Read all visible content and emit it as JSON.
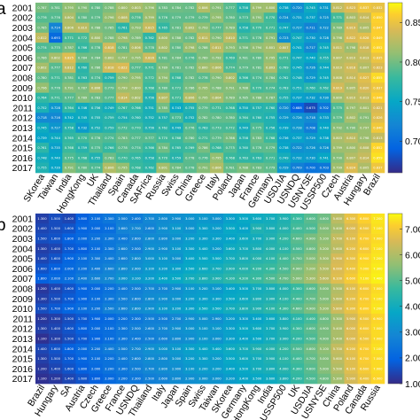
{
  "chart_data": [
    {
      "type": "heatmap",
      "panel_label": "a",
      "years": [
        "2001",
        "2002",
        "2003",
        "2004",
        "2005",
        "2006",
        "2007",
        "2008",
        "2009",
        "2010",
        "2011",
        "2012",
        "2013",
        "2014",
        "2015",
        "2016",
        "2017"
      ],
      "markets": [
        "SKorea",
        "Taiwan",
        "India",
        "HongKong",
        "UK",
        "Thailand",
        "Spain",
        "Canada",
        "SAFrica",
        "Russia",
        "Swiss",
        "China",
        "Greece",
        "Italy",
        "Poland",
        "Japan",
        "France",
        "Germany",
        "USDJIA",
        "USNDQ",
        "USNYSE",
        "USSP500",
        "Czech",
        "Austria",
        "Hungary",
        "Brazil"
      ],
      "colorbar": {
        "ticks": [
          0.7,
          0.75,
          0.8,
          0.85
        ],
        "tick_labels": [
          "0.700",
          "0.750",
          "0.800",
          "0.850"
        ],
        "range": [
          0.66,
          0.875
        ]
      },
      "values": [
        [
          0.787,
          0.781,
          0.795,
          0.79,
          0.78,
          0.788,
          0.8,
          0.803,
          0.796,
          0.783,
          0.784,
          0.782,
          0.806,
          0.791,
          0.777,
          0.758,
          0.799,
          0.8,
          0.738,
          0.72,
          0.745,
          0.731,
          0.812,
          0.823,
          0.837,
          0.832
        ],
        [
          0.776,
          0.776,
          0.804,
          0.78,
          0.779,
          0.796,
          0.808,
          0.776,
          0.799,
          0.776,
          0.779,
          0.779,
          0.779,
          0.795,
          0.78,
          0.773,
          0.791,
          0.77,
          0.724,
          0.731,
          0.737,
          0.725,
          0.771,
          0.803,
          0.814,
          0.85
        ],
        [
          0.785,
          0.714,
          0.806,
          0.81,
          0.788,
          0.785,
          0.761,
          0.793,
          0.815,
          0.765,
          0.781,
          0.802,
          0.793,
          0.777,
          0.789,
          0.758,
          0.77,
          0.771,
          0.747,
          0.727,
          0.711,
          0.722,
          0.789,
          0.819,
          0.805,
          0.847
        ],
        [
          0.812,
          0.693,
          0.771,
          0.772,
          0.8,
          0.788,
          0.798,
          0.789,
          0.762,
          0.8,
          0.788,
          0.782,
          0.811,
          0.79,
          0.81,
          0.771,
          0.778,
          0.791,
          0.723,
          0.747,
          0.73,
          0.728,
          0.798,
          0.822,
          0.828,
          0.849
        ],
        [
          0.774,
          0.775,
          0.787,
          0.766,
          0.778,
          0.818,
          0.781,
          0.806,
          0.778,
          0.802,
          0.78,
          0.798,
          0.788,
          0.811,
          0.793,
          0.786,
          0.794,
          0.801,
          0.807,
          0.741,
          0.717,
          0.745,
          0.811,
          0.798,
          0.818,
          0.852
        ],
        [
          0.786,
          0.802,
          0.825,
          0.784,
          0.784,
          0.802,
          0.797,
          0.795,
          0.816,
          0.781,
          0.784,
          0.776,
          0.789,
          0.792,
          0.769,
          0.781,
          0.78,
          0.795,
          0.771,
          0.747,
          0.74,
          0.755,
          0.807,
          0.81,
          0.813,
          0.835
        ],
        [
          0.802,
          0.777,
          0.812,
          0.76,
          0.786,
          0.818,
          0.822,
          0.777,
          0.771,
          0.789,
          0.781,
          0.782,
          0.8,
          0.806,
          0.774,
          0.779,
          0.781,
          0.803,
          0.769,
          0.745,
          0.726,
          0.744,
          0.81,
          0.818,
          0.807,
          0.823
        ],
        [
          0.78,
          0.771,
          0.781,
          0.763,
          0.774,
          0.759,
          0.79,
          0.795,
          0.772,
          0.794,
          0.768,
          0.782,
          0.778,
          0.79,
          0.802,
          0.766,
          0.774,
          0.784,
          0.762,
          0.748,
          0.729,
          0.745,
          0.808,
          0.814,
          0.827,
          0.855
        ],
        [
          0.796,
          0.776,
          0.791,
          0.787,
          0.806,
          0.779,
          0.799,
          0.8,
          0.768,
          0.78,
          0.772,
          0.786,
          0.795,
          0.788,
          0.791,
          0.788,
          0.77,
          0.774,
          0.763,
          0.751,
          0.76,
          0.762,
          0.819,
          0.805,
          0.82,
          0.837
        ],
        [
          0.764,
          0.771,
          0.777,
          0.789,
          0.783,
          0.777,
          0.814,
          0.802,
          0.756,
          0.807,
          0.771,
          0.806,
          0.795,
          0.804,
          0.789,
          0.785,
          0.788,
          0.787,
          0.755,
          0.737,
          0.732,
          0.73,
          0.8,
          0.81,
          0.813,
          0.848
        ],
        [
          0.752,
          0.728,
          0.764,
          0.746,
          0.756,
          0.749,
          0.767,
          0.766,
          0.751,
          0.785,
          0.743,
          0.755,
          0.779,
          0.771,
          0.768,
          0.75,
          0.757,
          0.76,
          0.72,
          0.688,
          0.675,
          0.702,
          0.775,
          0.797,
          0.801,
          0.821
        ],
        [
          0.718,
          0.716,
          0.742,
          0.745,
          0.755,
          0.759,
          0.754,
          0.76,
          0.752,
          0.757,
          0.773,
          0.752,
          0.782,
          0.78,
          0.78,
          0.764,
          0.76,
          0.755,
          0.729,
          0.726,
          0.718,
          0.733,
          0.779,
          0.802,
          0.791,
          0.826
        ],
        [
          0.745,
          0.727,
          0.758,
          0.732,
          0.752,
          0.759,
          0.772,
          0.77,
          0.756,
          0.762,
          0.749,
          0.776,
          0.763,
          0.773,
          0.772,
          0.749,
          0.775,
          0.756,
          0.739,
          0.728,
          0.708,
          0.74,
          0.792,
          0.79,
          0.797,
          0.84
        ],
        [
          0.739,
          0.744,
          0.765,
          0.77,
          0.778,
          0.774,
          0.783,
          0.777,
          0.777,
          0.77,
          0.768,
          0.78,
          0.771,
          0.779,
          0.786,
          0.758,
          0.783,
          0.768,
          0.736,
          0.737,
          0.729,
          0.738,
          0.803,
          0.81,
          0.798,
          0.813
        ],
        [
          0.761,
          0.735,
          0.768,
          0.759,
          0.775,
          0.766,
          0.778,
          0.774,
          0.766,
          0.784,
          0.765,
          0.769,
          0.786,
          0.768,
          0.775,
          0.76,
          0.778,
          0.779,
          0.738,
          0.722,
          0.726,
          0.726,
          0.799,
          0.8,
          0.808,
          0.852
        ],
        [
          0.748,
          0.74,
          0.775,
          0.768,
          0.755,
          0.783,
          0.77,
          0.765,
          0.758,
          0.77,
          0.759,
          0.778,
          0.776,
          0.795,
          0.768,
          0.763,
          0.763,
          0.771,
          0.749,
          0.732,
          0.73,
          0.741,
          0.79,
          0.807,
          0.814,
          0.859
        ],
        [
          0.755,
          0.739,
          0.791,
          0.78,
          0.774,
          0.806,
          0.795,
          0.768,
          0.762,
          0.801,
          0.784,
          0.778,
          0.791,
          0.806,
          0.781,
          0.788,
          0.783,
          0.779,
          0.729,
          0.709,
          0.7,
          0.703,
          0.799,
          0.824,
          0.805,
          0.837
        ]
      ]
    },
    {
      "type": "heatmap",
      "panel_label": "b",
      "years": [
        "2001",
        "2002",
        "2003",
        "2004",
        "2005",
        "2006",
        "2007",
        "2008",
        "2009",
        "2010",
        "2011",
        "2012",
        "2013",
        "2014",
        "2015",
        "2016",
        "2017"
      ],
      "markets": [
        "Brazil",
        "Hungary",
        "SA",
        "Austria",
        "Czech",
        "Greece",
        "France",
        "USNDQ",
        "Thailand",
        "Italy",
        "Japan",
        "Spain",
        "Swiss",
        "Taiwan",
        "SKorea",
        "Germany",
        "HongKong",
        "India",
        "USSP500",
        "UK",
        "USDJIA",
        "USNYSE",
        "China",
        "Poland",
        "Canada",
        "Russia"
      ],
      "colorbar": {
        "ticks": [
          1,
          2,
          3,
          4,
          5,
          6,
          7
        ],
        "tick_labels": [
          "1.000",
          "2.000",
          "3.000",
          "4.000",
          "5.000",
          "6.000",
          "7.000"
        ],
        "range": [
          1.0,
          7.6
        ]
      },
      "values": [
        [
          1.3,
          1.5,
          1.4,
          1.8,
          2.1,
          2.3,
          2.5,
          2.4,
          2.7,
          2.8,
          2.9,
          3.0,
          3.1,
          3.0,
          3.3,
          3.5,
          3.6,
          3.7,
          3.9,
          4.3,
          4.6,
          4.8,
          5.6,
          6.3,
          6.8,
          7.2
        ],
        [
          1.4,
          1.5,
          1.6,
          1.9,
          2.0,
          2.1,
          2.6,
          2.7,
          2.6,
          2.9,
          3.1,
          3.0,
          3.3,
          3.2,
          3.5,
          3.4,
          3.9,
          3.8,
          4.0,
          4.4,
          4.5,
          5.0,
          5.4,
          6.0,
          6.5,
          7.1
        ],
        [
          1.5,
          1.6,
          1.8,
          2.0,
          2.2,
          2.3,
          2.4,
          2.6,
          2.8,
          2.8,
          3.0,
          3.2,
          3.3,
          3.3,
          3.4,
          3.6,
          3.7,
          3.9,
          4.2,
          4.6,
          4.9,
          5.1,
          5.7,
          6.1,
          6.7,
          7.0
        ],
        [
          1.3,
          1.4,
          1.7,
          1.8,
          2.1,
          2.3,
          2.6,
          2.5,
          2.9,
          2.9,
          3.1,
          3.3,
          3.4,
          3.2,
          3.6,
          3.7,
          3.8,
          4.0,
          4.1,
          4.5,
          4.8,
          5.2,
          5.6,
          6.2,
          6.6,
          7.1
        ],
        [
          1.4,
          1.6,
          1.9,
          2.1,
          2.3,
          2.4,
          2.6,
          2.8,
          3.0,
          3.1,
          3.0,
          3.4,
          3.5,
          3.5,
          3.7,
          3.8,
          4.0,
          4.1,
          4.4,
          4.7,
          5.0,
          5.3,
          5.9,
          6.3,
          6.9,
          7.2
        ],
        [
          1.6,
          1.8,
          2.0,
          2.2,
          2.4,
          2.6,
          2.8,
          2.9,
          3.1,
          3.2,
          3.3,
          3.5,
          3.6,
          3.7,
          3.9,
          4.0,
          4.2,
          4.3,
          4.5,
          4.9,
          5.2,
          5.5,
          6.0,
          6.4,
          7.0,
          7.3
        ],
        [
          1.8,
          2.0,
          2.1,
          2.4,
          2.6,
          2.7,
          3.0,
          3.1,
          3.2,
          3.4,
          3.5,
          3.7,
          3.8,
          3.9,
          4.1,
          4.2,
          4.3,
          4.5,
          4.7,
          5.0,
          5.3,
          5.6,
          6.1,
          6.6,
          7.1,
          7.4
        ],
        [
          1.2,
          1.4,
          1.6,
          1.9,
          2.0,
          2.2,
          2.4,
          2.5,
          2.7,
          2.7,
          2.9,
          3.1,
          3.2,
          3.1,
          3.4,
          3.5,
          3.7,
          3.8,
          4.0,
          4.3,
          4.6,
          5.0,
          5.5,
          6.1,
          6.6,
          7.0
        ],
        [
          1.3,
          1.5,
          1.7,
          1.9,
          2.1,
          2.3,
          2.5,
          2.6,
          2.8,
          2.9,
          3.0,
          3.2,
          3.3,
          3.3,
          3.5,
          3.6,
          3.8,
          3.9,
          4.1,
          4.4,
          4.7,
          5.0,
          5.6,
          6.2,
          6.7,
          7.1
        ],
        [
          1.5,
          1.7,
          1.9,
          2.1,
          2.2,
          2.5,
          2.6,
          2.8,
          2.9,
          3.1,
          3.2,
          3.3,
          3.5,
          3.5,
          3.7,
          3.8,
          3.9,
          4.1,
          4.3,
          4.6,
          4.9,
          5.2,
          5.8,
          6.3,
          6.8,
          7.2
        ],
        [
          1.2,
          1.3,
          1.5,
          1.7,
          1.9,
          2.0,
          2.2,
          2.3,
          2.5,
          2.5,
          2.7,
          2.9,
          3.0,
          2.9,
          3.2,
          3.3,
          3.4,
          3.6,
          3.8,
          4.1,
          4.4,
          4.8,
          5.3,
          5.9,
          6.5,
          6.9
        ],
        [
          1.3,
          1.4,
          1.6,
          1.8,
          2.0,
          2.1,
          2.3,
          2.5,
          2.6,
          2.7,
          2.9,
          3.0,
          3.1,
          3.1,
          3.3,
          3.5,
          3.6,
          3.7,
          3.9,
          4.3,
          4.6,
          4.9,
          5.4,
          6.0,
          6.6,
          7.0
        ],
        [
          1.1,
          1.3,
          1.5,
          1.7,
          1.9,
          2.1,
          2.3,
          2.4,
          2.5,
          2.6,
          2.8,
          2.9,
          3.1,
          3.0,
          3.3,
          3.4,
          3.5,
          3.7,
          3.9,
          4.2,
          4.5,
          4.9,
          5.4,
          6.0,
          6.5,
          7.0
        ],
        [
          1.4,
          1.6,
          1.8,
          2.0,
          2.2,
          2.4,
          2.5,
          2.7,
          2.9,
          3.0,
          3.1,
          3.3,
          3.4,
          3.4,
          3.6,
          3.7,
          3.9,
          4.0,
          4.2,
          4.5,
          4.8,
          5.1,
          5.7,
          6.2,
          6.7,
          7.1
        ],
        [
          1.3,
          1.5,
          1.7,
          1.9,
          2.1,
          2.2,
          2.4,
          2.6,
          2.8,
          2.8,
          3.0,
          3.2,
          3.3,
          3.2,
          3.5,
          3.6,
          3.7,
          3.9,
          4.1,
          4.4,
          4.7,
          5.0,
          5.6,
          6.1,
          6.7,
          7.0
        ],
        [
          1.2,
          1.4,
          1.6,
          1.8,
          2.0,
          2.2,
          2.3,
          2.5,
          2.7,
          2.8,
          2.9,
          3.1,
          3.2,
          3.2,
          3.4,
          3.5,
          3.7,
          3.8,
          4.0,
          4.3,
          4.6,
          5.0,
          5.5,
          6.1,
          6.6,
          7.0
        ],
        [
          1.1,
          1.2,
          1.4,
          1.6,
          1.8,
          2.0,
          2.2,
          2.3,
          2.5,
          2.6,
          2.8,
          2.9,
          3.0,
          3.0,
          3.2,
          3.4,
          3.5,
          3.6,
          3.8,
          4.2,
          4.5,
          4.8,
          5.3,
          5.9,
          6.4,
          6.9
        ]
      ]
    }
  ]
}
